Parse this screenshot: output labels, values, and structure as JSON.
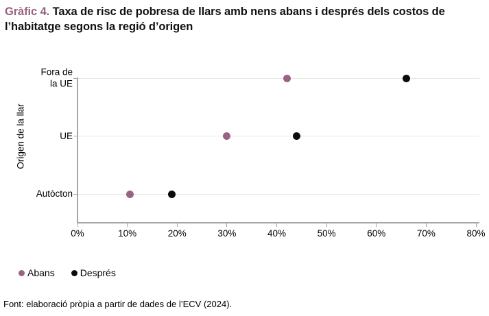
{
  "title": {
    "prefix": "Gràfic 4.",
    "main": " Taxa de risc de pobresa de llars amb nens abans i després dels costos de l’habitatge segons la regió d’origen"
  },
  "colors": {
    "accent": "#96637F",
    "abans": "#9A6386",
    "despres": "#0D0B0C",
    "grid": "#E9E9E9",
    "axis": "#A6A6A6"
  },
  "chart_data": {
    "type": "scatter",
    "title": "Taxa de risc de pobresa de llars amb nens abans i després dels costos de l’habitatge segons la regió d’origen",
    "categories": [
      "Fora de\nla UE",
      "UE",
      "Autòcton"
    ],
    "series": [
      {
        "name": "Abans",
        "color": "#9A6386",
        "values": [
          42,
          30,
          10.5
        ]
      },
      {
        "name": "Després",
        "color": "#0D0B0C",
        "values": [
          66,
          44,
          19
        ]
      }
    ],
    "x_ticks": [
      "0%",
      "10%",
      "20%",
      "30%",
      "40%",
      "50%",
      "60%",
      "70%",
      "80%"
    ],
    "xlim": [
      0,
      80
    ],
    "unit": "%",
    "ylabel": "Origen de la llar",
    "grid": "horizontal-category-lines",
    "legend_position": "bottom-left"
  },
  "footer": "Font: elaboració pròpia a partir de dades de l’ECV (2024)."
}
